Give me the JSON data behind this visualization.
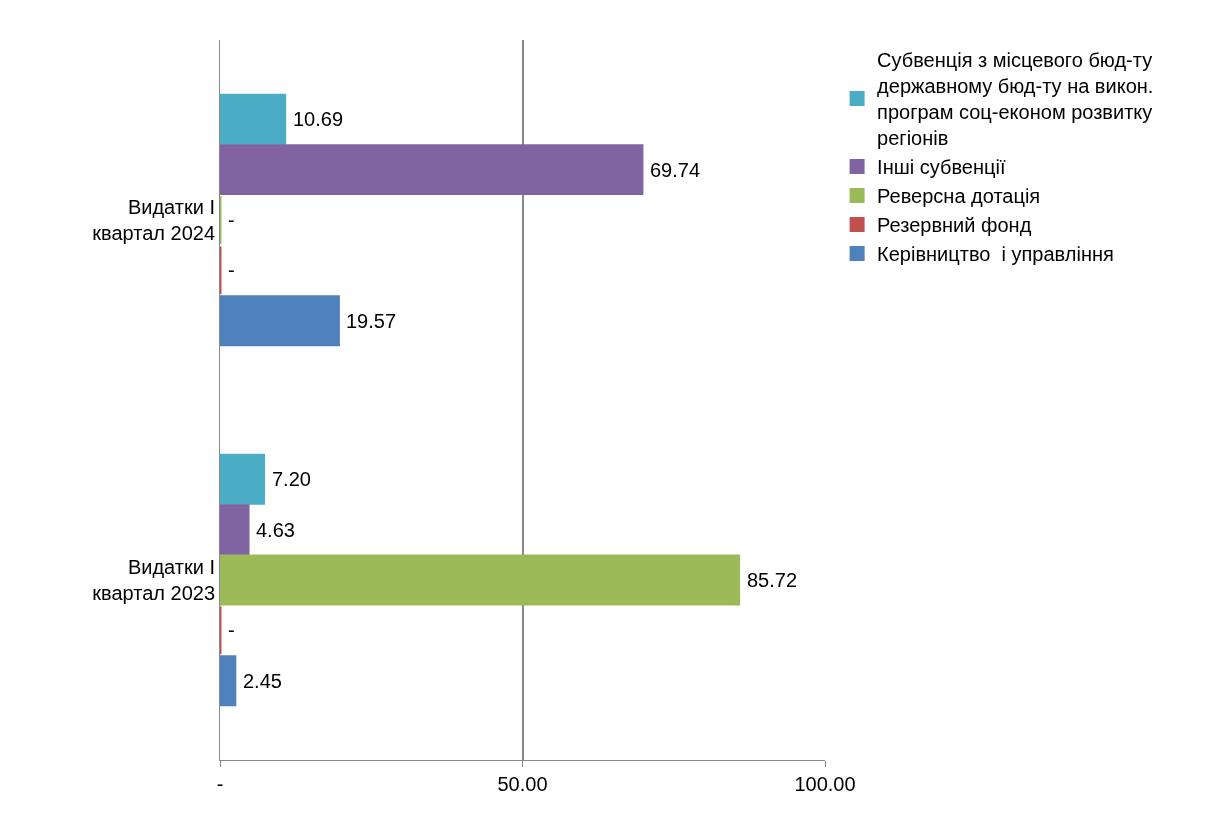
{
  "chart_data": {
    "type": "bar",
    "orientation": "horizontal",
    "categories": [
      "Видатки I квартал 2024",
      "Видатки I квартал 2023"
    ],
    "series": [
      {
        "name": "Субвенція з місцевого бюд-ту державному бюд-ту на викон. програм соц-економ розвитку регіонів",
        "color": "#4bacc6",
        "values": [
          10.69,
          7.2
        ],
        "value_labels": [
          "10.69",
          "7.20"
        ]
      },
      {
        "name": "Інші субвенції",
        "color": "#8064a2",
        "values": [
          69.74,
          4.63
        ],
        "value_labels": [
          "69.74",
          "4.63"
        ]
      },
      {
        "name": "Реверсна дотація",
        "color": "#9bbb59",
        "values": [
          0,
          85.72
        ],
        "value_labels": [
          "-",
          "85.72"
        ]
      },
      {
        "name": "Резервний фонд",
        "color": "#c0504d",
        "values": [
          0,
          0
        ],
        "value_labels": [
          "-",
          "-"
        ]
      },
      {
        "name": "Керівництво  і управління",
        "color": "#4f81bd",
        "values": [
          19.57,
          2.45
        ],
        "value_labels": [
          "19.57",
          "2.45"
        ]
      }
    ],
    "xlim": [
      0,
      100
    ],
    "xticks": [
      {
        "value": 0,
        "label": "-"
      },
      {
        "value": 50,
        "label": "50.00"
      },
      {
        "value": 100,
        "label": "100.00"
      }
    ],
    "grid": "x",
    "legend": "right"
  }
}
